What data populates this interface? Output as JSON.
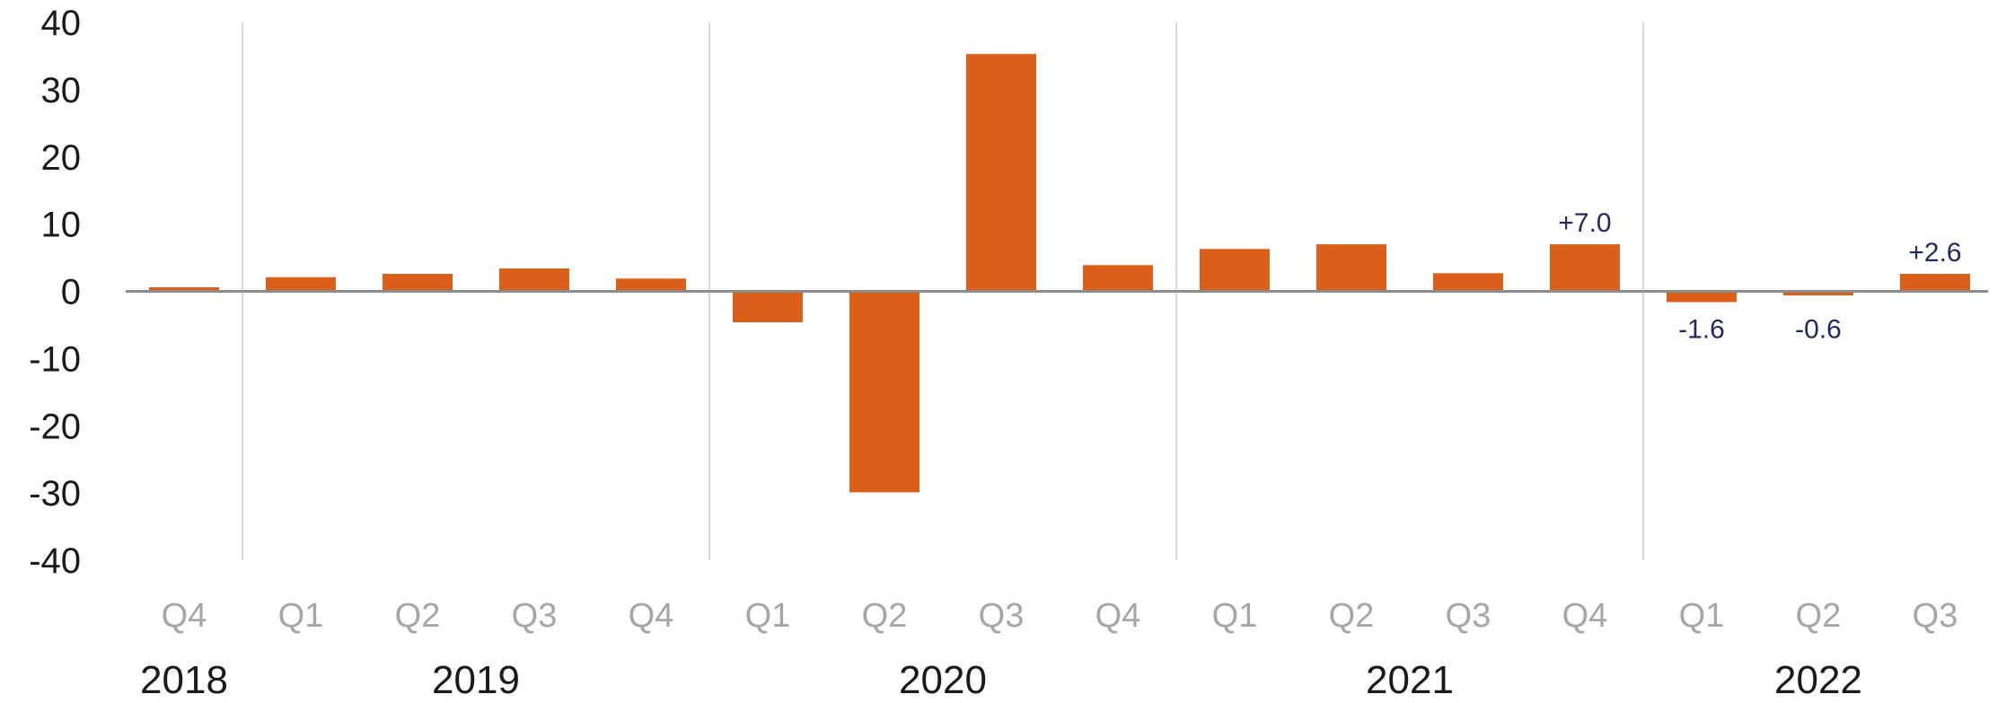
{
  "chart_data": {
    "type": "bar",
    "title": "",
    "xlabel": "",
    "ylabel": "",
    "ylim": [
      -40,
      40
    ],
    "yticks": [
      "40",
      "30",
      "20",
      "10",
      "0",
      "-10",
      "-20",
      "-30",
      "-40"
    ],
    "bar_color": "#d95f1a",
    "label_color": "#1f2a5a",
    "grid": false,
    "categories": [
      "Q4",
      "Q1",
      "Q2",
      "Q3",
      "Q4",
      "Q1",
      "Q2",
      "Q3",
      "Q4",
      "Q1",
      "Q2",
      "Q3",
      "Q4",
      "Q1",
      "Q2",
      "Q3"
    ],
    "values": [
      0.6,
      2.1,
      2.6,
      3.4,
      1.9,
      -4.6,
      -29.9,
      35.3,
      3.9,
      6.3,
      7.0,
      2.7,
      7.0,
      -1.6,
      -0.6,
      2.6
    ],
    "data_labels": [
      "",
      "",
      "",
      "",
      "",
      "",
      "",
      "",
      "",
      "",
      "",
      "",
      "+7.0",
      "-1.6",
      "-0.6",
      "+2.6"
    ],
    "years": [
      {
        "label": "2018",
        "start": 0,
        "count": 1
      },
      {
        "label": "2019",
        "start": 1,
        "count": 4
      },
      {
        "label": "2020",
        "start": 5,
        "count": 4
      },
      {
        "label": "2021",
        "start": 9,
        "count": 4
      },
      {
        "label": "2022",
        "start": 13,
        "count": 3
      }
    ]
  }
}
